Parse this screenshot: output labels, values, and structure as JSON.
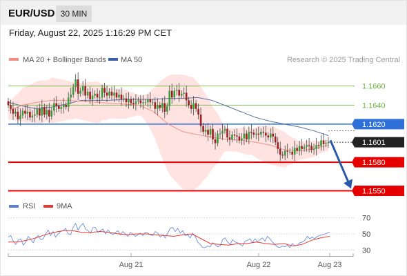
{
  "header": {
    "symbol": "EUR/USD",
    "timeframe": "30 MIN"
  },
  "datetime": "Friday, August 22, 2025 1:16:29 PM CET",
  "price_panel": {
    "legend": [
      {
        "label": "MA 20 + Bollinger Bands",
        "color": "#f28b82"
      },
      {
        "label": "MA 50",
        "color": "#3c5ea8"
      }
    ],
    "credit": "Research © 2025 Trading Central"
  },
  "rsi_panel": {
    "legend": [
      {
        "label": "RSI",
        "color": "#5b7fd6"
      },
      {
        "label": "9MA",
        "color": "#e53935"
      }
    ]
  },
  "colors": {
    "resistance": "#6db33f",
    "pivot": "#2e6fd8",
    "support": "#e50000",
    "current": "#222222",
    "arrow": "#2a57a8"
  },
  "chart_data": [
    {
      "type": "candlestick",
      "title": "EUR/USD 30 MIN",
      "y_ticks": [
        1.155,
        1.158,
        1.1601,
        1.162,
        1.164,
        1.166
      ],
      "ylim": [
        1.1545,
        1.1675
      ],
      "x_ticks": [
        "Aug 21",
        "Aug 22",
        "Aug 23"
      ],
      "levels": [
        {
          "label": "1.1660",
          "value": 1.166,
          "kind": "resistance"
        },
        {
          "label": "1.1640",
          "value": 1.164,
          "kind": "resistance"
        },
        {
          "label": "1.1620",
          "value": 1.162,
          "kind": "pivot"
        },
        {
          "label": "1.1601",
          "value": 1.1601,
          "kind": "current"
        },
        {
          "label": "1.1580",
          "value": 1.158,
          "kind": "support"
        },
        {
          "label": "1.1550",
          "value": 1.155,
          "kind": "support"
        }
      ],
      "series": [
        {
          "name": "Close",
          "values": [
            1.164,
            1.1636,
            1.1631,
            1.1633,
            1.1625,
            1.1629,
            1.1634,
            1.1631,
            1.1633,
            1.1627,
            1.1629,
            1.163,
            1.1636,
            1.1629,
            1.1638,
            1.163,
            1.1635,
            1.1628,
            1.1634,
            1.1642,
            1.1639,
            1.1636,
            1.1638,
            1.164,
            1.1638,
            1.1648,
            1.1651,
            1.1659,
            1.1667,
            1.1652,
            1.1655,
            1.166,
            1.165,
            1.1654,
            1.1646,
            1.165,
            1.1652,
            1.1648,
            1.1648,
            1.1658,
            1.1653,
            1.165,
            1.1654,
            1.165,
            1.1653,
            1.1648,
            1.1651,
            1.1646,
            1.1647,
            1.1643,
            1.1646,
            1.1642,
            1.1641,
            1.1644,
            1.1645,
            1.1642,
            1.1643,
            1.1643,
            1.1646,
            1.1643,
            1.1643,
            1.1636,
            1.164,
            1.1637,
            1.1642,
            1.1633,
            1.1639,
            1.1655,
            1.1648,
            1.1655,
            1.1656,
            1.165,
            1.1652,
            1.1653,
            1.1645,
            1.164,
            1.1636,
            1.1642,
            1.1636,
            1.163,
            1.1618,
            1.1612,
            1.1614,
            1.1609,
            1.1615,
            1.1604,
            1.16,
            1.161,
            1.161,
            1.1613,
            1.1615,
            1.1606,
            1.1604,
            1.1609,
            1.1608,
            1.1607,
            1.1603,
            1.1605,
            1.161,
            1.1604,
            1.1612,
            1.1611,
            1.1609,
            1.161,
            1.1609,
            1.1612,
            1.1611,
            1.1608,
            1.1606,
            1.161,
            1.1607,
            1.1601,
            1.1594,
            1.1588,
            1.1587,
            1.1592,
            1.1591,
            1.1591,
            1.1588,
            1.1595,
            1.1592,
            1.1597,
            1.1594,
            1.1596,
            1.1598,
            1.1597,
            1.1593,
            1.1594,
            1.1598,
            1.1597,
            1.1603,
            1.1599,
            1.16,
            1.1601
          ]
        },
        {
          "name": "MA 20",
          "values": [
            1.1634,
            1.164,
            1.1643,
            1.1645,
            1.1645,
            1.1644,
            1.1643,
            1.1642,
            1.1641,
            1.164,
            1.1633,
            1.162,
            1.1612,
            1.1609,
            1.1606,
            1.1604,
            1.1603,
            1.1601,
            1.1598,
            1.1593,
            1.1592,
            1.1594,
            1.1598
          ]
        },
        {
          "name": "MA 50",
          "values": [
            1.1643,
            1.1639,
            1.1636,
            1.1638,
            1.1641,
            1.1645,
            1.1645,
            1.1645,
            1.1646,
            1.1646,
            1.1646,
            1.1647,
            1.1647,
            1.1648,
            1.1645,
            1.1639,
            1.1633,
            1.1627,
            1.1623,
            1.162,
            1.1617,
            1.1613,
            1.1608
          ]
        }
      ]
    },
    {
      "type": "line",
      "y_ticks": [
        30,
        50,
        70
      ],
      "ylim": [
        20,
        80
      ],
      "x_ticks": [
        "Aug 21",
        "Aug 22",
        "Aug 23"
      ],
      "series": [
        {
          "name": "RSI",
          "values": [
            46,
            48,
            41,
            37,
            42,
            44,
            36,
            40,
            47,
            43,
            39,
            45,
            48,
            43,
            44,
            50,
            55,
            48,
            53,
            46,
            50,
            53,
            54,
            57,
            50,
            49,
            58,
            63,
            55,
            60,
            63,
            56,
            54,
            51,
            58,
            58,
            52,
            54,
            56,
            50,
            55,
            51,
            49,
            52,
            54,
            49,
            53,
            50,
            47,
            52,
            50,
            47,
            49,
            51,
            48,
            52,
            51,
            49,
            48,
            53,
            51,
            46,
            49,
            45,
            51,
            57,
            58,
            53,
            57,
            51,
            54,
            48,
            49,
            45,
            51,
            47,
            40,
            37,
            33,
            33,
            35,
            34,
            39,
            37,
            34,
            35,
            43,
            45,
            40,
            37,
            43,
            40,
            39,
            37,
            35,
            41,
            42,
            44,
            39,
            44,
            40,
            43,
            45,
            41,
            47,
            44,
            40,
            37,
            34,
            33,
            35,
            34,
            36,
            33,
            38,
            35,
            36,
            39,
            40,
            42,
            47,
            44,
            46,
            44,
            47,
            48,
            49,
            50,
            51,
            52
          ]
        },
        {
          "name": "9MA",
          "values": [
            40,
            40,
            42,
            45,
            49,
            52,
            54,
            54,
            52,
            52,
            53,
            52,
            50,
            49,
            50,
            50,
            49,
            48,
            47,
            49,
            50,
            44,
            38,
            37,
            36,
            38,
            38,
            40,
            38,
            37,
            38,
            35,
            37,
            42,
            45,
            47
          ]
        }
      ]
    }
  ]
}
